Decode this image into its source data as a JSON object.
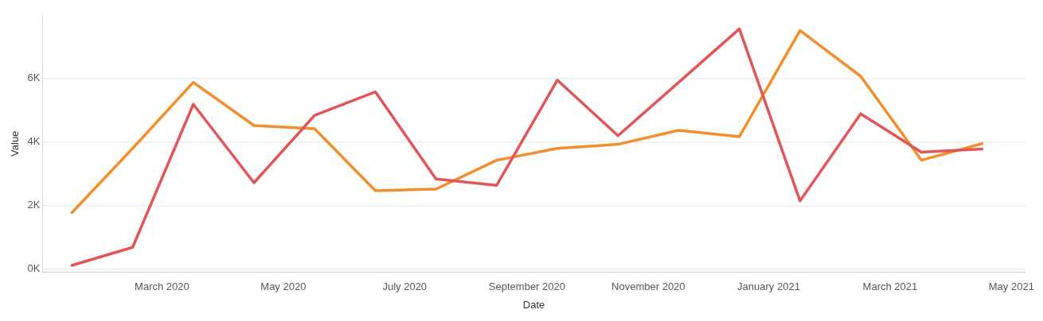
{
  "chart_data": {
    "type": "line",
    "xlabel": "Date",
    "ylabel": "Value",
    "x": [
      "2020-02-01",
      "2020-03-01",
      "2020-04-01",
      "2020-05-01",
      "2020-06-01",
      "2020-07-01",
      "2020-08-01",
      "2020-09-01",
      "2020-10-01",
      "2020-11-01",
      "2020-12-01",
      "2021-01-01",
      "2021-02-01",
      "2021-03-01",
      "2021-04-01",
      "2021-05-01"
    ],
    "series": [
      {
        "color": "#e15759",
        "values": [
          120,
          690,
          5190,
          2720,
          4840,
          5580,
          2840,
          2640,
          5950,
          4200,
          5880,
          7560,
          2150,
          4890,
          3680,
          3780
        ]
      },
      {
        "color": "#f28e2b",
        "values": [
          1780,
          3800,
          5880,
          4520,
          4420,
          2470,
          2520,
          3430,
          3800,
          3930,
          4370,
          4170,
          7510,
          6070,
          3430,
          3950
        ]
      }
    ],
    "xlim": [
      "2020-01-17",
      "2021-05-23"
    ],
    "xticks": [
      {
        "value": "2020-03-16",
        "label": "March 2020"
      },
      {
        "value": "2020-05-16",
        "label": "May 2020"
      },
      {
        "value": "2020-07-16",
        "label": "July 2020"
      },
      {
        "value": "2020-09-16",
        "label": "September 2020"
      },
      {
        "value": "2020-11-16",
        "label": "November 2020"
      },
      {
        "value": "2021-01-16",
        "label": "January 2021"
      },
      {
        "value": "2021-03-16",
        "label": "March 2021"
      },
      {
        "value": "2021-05-16",
        "label": "May 2021"
      }
    ],
    "ylim": [
      -100,
      8000
    ],
    "yticks": [
      {
        "value": 0,
        "label": "0K"
      },
      {
        "value": 2000,
        "label": "2K"
      },
      {
        "value": 4000,
        "label": "4K"
      },
      {
        "value": 6000,
        "label": "6K"
      }
    ],
    "grid": "y",
    "legend": false,
    "marker": "none",
    "line_style": "solid"
  }
}
